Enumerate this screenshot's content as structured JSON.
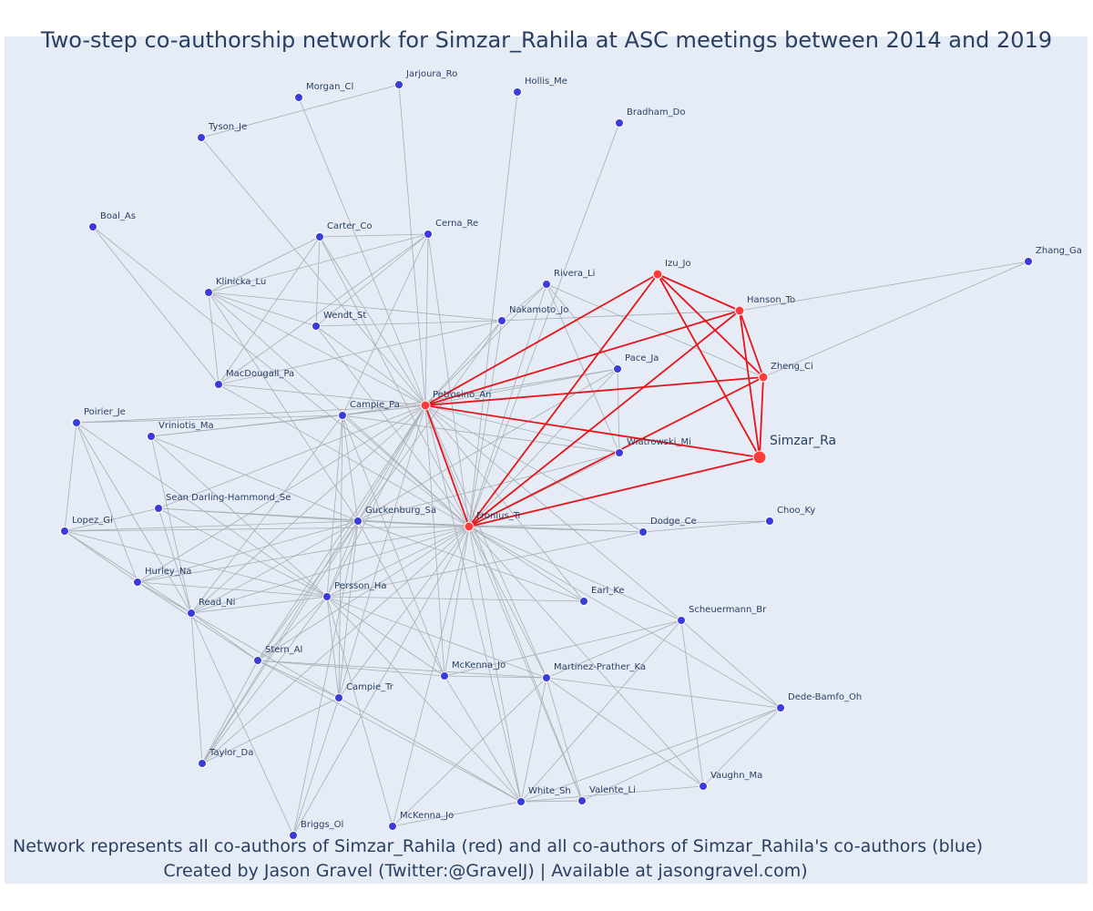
{
  "title": "Two-step co-authorship network for Simzar_Rahila at ASC meetings between 2014 and 2019",
  "caption_line1": "Network represents all co-authors of Simzar_Rahila (red) and all co-authors of Simzar_Rahila's co-authors (blue)",
  "caption_line2": "Created by Jason Gravel (Twitter:@GravelJ) | Available at jasongravel.com)",
  "colors": {
    "background": "#e5ecf6",
    "red_node": "#ff3b3b",
    "blue_node": "#3b3bdb",
    "red_edge": "#e8141a",
    "grey_edge": "#a9adb5",
    "text": "#2a3f5f"
  },
  "nodes": [
    {
      "id": "Simzar_Ra",
      "label": "Simzar_Ra",
      "group": "focal"
    },
    {
      "id": "Petrosino_An",
      "label": "Petrosino_An",
      "group": "red"
    },
    {
      "id": "Fronius_Tr",
      "label": "Fronius_Tr",
      "group": "red"
    },
    {
      "id": "Izu_Jo",
      "label": "Izu_Jo",
      "group": "red"
    },
    {
      "id": "Hanson_To",
      "label": "Hanson_To",
      "group": "red"
    },
    {
      "id": "Zheng_Ci",
      "label": "Zheng_Ci",
      "group": "red"
    },
    {
      "id": "Wiatrowski_Mi",
      "label": "Wiatrowski_Mi",
      "group": "blue"
    },
    {
      "id": "Jarjoura_Ro",
      "label": "Jarjoura_Ro",
      "group": "blue"
    },
    {
      "id": "Morgan_Cl",
      "label": "Morgan_Cl",
      "group": "blue"
    },
    {
      "id": "Hollis_Me",
      "label": "Hollis_Me",
      "group": "blue"
    },
    {
      "id": "Tyson_Je",
      "label": "Tyson_Je",
      "group": "blue"
    },
    {
      "id": "Bradham_Do",
      "label": "Bradham_Do",
      "group": "blue"
    },
    {
      "id": "Boal_As",
      "label": "Boal_As",
      "group": "blue"
    },
    {
      "id": "Carter_Co",
      "label": "Carter_Co",
      "group": "blue"
    },
    {
      "id": "Cerna_Re",
      "label": "Cerna_Re",
      "group": "blue"
    },
    {
      "id": "Zhang_Ga",
      "label": "Zhang_Ga",
      "group": "blue"
    },
    {
      "id": "Rivera_Li",
      "label": "Rivera_Li",
      "group": "blue"
    },
    {
      "id": "Klinicka_Lu",
      "label": "Klinicka_Lu",
      "group": "blue"
    },
    {
      "id": "Nakamoto_Jo",
      "label": "Nakamoto_Jo",
      "group": "blue"
    },
    {
      "id": "Wendt_St",
      "label": "Wendt_St",
      "group": "blue"
    },
    {
      "id": "Pace_Ja",
      "label": "Pace_Ja",
      "group": "blue"
    },
    {
      "id": "MacDougall_Pa",
      "label": "MacDougall_Pa",
      "group": "blue"
    },
    {
      "id": "Campie_Pa",
      "label": "Campie_Pa",
      "group": "blue"
    },
    {
      "id": "Poirier_Je",
      "label": "Poirier_Je",
      "group": "blue"
    },
    {
      "id": "Vriniotis_Ma",
      "label": "Vriniotis_Ma",
      "group": "blue"
    },
    {
      "id": "Sean_Darling",
      "label": "Sean Darling-Hammond_Se",
      "group": "blue"
    },
    {
      "id": "Guckenburg_Sa",
      "label": "Guckenburg_Sa",
      "group": "blue"
    },
    {
      "id": "Lopez_Gi",
      "label": "Lopez_Gi",
      "group": "blue"
    },
    {
      "id": "Choo_Ky",
      "label": "Choo_Ky",
      "group": "blue"
    },
    {
      "id": "Dodge_Ce",
      "label": "Dodge_Ce",
      "group": "blue"
    },
    {
      "id": "Hurley_Na",
      "label": "Hurley_Na",
      "group": "blue"
    },
    {
      "id": "Persson_Ha",
      "label": "Persson_Ha",
      "group": "blue"
    },
    {
      "id": "Earl_Ke",
      "label": "Earl_Ke",
      "group": "blue"
    },
    {
      "id": "Read_Ni",
      "label": "Read_Ni",
      "group": "blue"
    },
    {
      "id": "Scheuermann_Br",
      "label": "Scheuermann_Br",
      "group": "blue"
    },
    {
      "id": "Stern_Al",
      "label": "Stern_Al",
      "group": "blue"
    },
    {
      "id": "McKenna_Jo_a",
      "label": "McKenna_Jo",
      "group": "blue"
    },
    {
      "id": "Martinez_Prather_Ka",
      "label": "Martinez-Prather_Ka",
      "group": "blue"
    },
    {
      "id": "Campie_Tr",
      "label": "Campie_Tr",
      "group": "blue"
    },
    {
      "id": "Dede_Bamfo_Oh",
      "label": "Dede-Bamfo_Oh",
      "group": "blue"
    },
    {
      "id": "Taylor_Da",
      "label": "Taylor_Da",
      "group": "blue"
    },
    {
      "id": "Vaughn_Ma",
      "label": "Vaughn_Ma",
      "group": "blue"
    },
    {
      "id": "White_Sh",
      "label": "White_Sh",
      "group": "blue"
    },
    {
      "id": "Valente_Li",
      "label": "Valente_Li",
      "group": "blue"
    },
    {
      "id": "McKenna_Jo_b",
      "label": "McKenna_Jo",
      "group": "blue"
    },
    {
      "id": "Briggs_Ol",
      "label": "Briggs_Ol",
      "group": "blue"
    }
  ],
  "red_edges": [
    [
      "Simzar_Ra",
      "Petrosino_An"
    ],
    [
      "Simzar_Ra",
      "Fronius_Tr"
    ],
    [
      "Simzar_Ra",
      "Izu_Jo"
    ],
    [
      "Simzar_Ra",
      "Hanson_To"
    ],
    [
      "Simzar_Ra",
      "Zheng_Ci"
    ],
    [
      "Petrosino_An",
      "Fronius_Tr"
    ],
    [
      "Petrosino_An",
      "Izu_Jo"
    ],
    [
      "Petrosino_An",
      "Hanson_To"
    ],
    [
      "Petrosino_An",
      "Zheng_Ci"
    ],
    [
      "Fronius_Tr",
      "Izu_Jo"
    ],
    [
      "Fronius_Tr",
      "Hanson_To"
    ],
    [
      "Fronius_Tr",
      "Zheng_Ci"
    ],
    [
      "Izu_Jo",
      "Hanson_To"
    ],
    [
      "Izu_Jo",
      "Zheng_Ci"
    ],
    [
      "Hanson_To",
      "Zheng_Ci"
    ]
  ],
  "grey_edges": [
    [
      "Hanson_To",
      "Zhang_Ga"
    ],
    [
      "Zheng_Ci",
      "Zhang_Ga"
    ],
    [
      "Hanson_To",
      "Nakamoto_Jo"
    ],
    [
      "Zheng_Ci",
      "Rivera_Li"
    ],
    [
      "Petrosino_An",
      "Jarjoura_Ro"
    ],
    [
      "Petrosino_An",
      "Morgan_Cl"
    ],
    [
      "Petrosino_An",
      "Tyson_Je"
    ],
    [
      "Petrosino_An",
      "Carter_Co"
    ],
    [
      "Petrosino_An",
      "Cerna_Re"
    ],
    [
      "Petrosino_An",
      "Klinicka_Lu"
    ],
    [
      "Petrosino_An",
      "Wendt_St"
    ],
    [
      "Petrosino_An",
      "MacDougall_Pa"
    ],
    [
      "Petrosino_An",
      "Campie_Pa"
    ],
    [
      "Petrosino_An",
      "Nakamoto_Jo"
    ],
    [
      "Petrosino_An",
      "Rivera_Li"
    ],
    [
      "Petrosino_An",
      "Pace_Ja"
    ],
    [
      "Petrosino_An",
      "Wiatrowski_Mi"
    ],
    [
      "Petrosino_An",
      "Guckenburg_Sa"
    ],
    [
      "Petrosino_An",
      "Persson_Ha"
    ],
    [
      "Petrosino_An",
      "Sean_Darling"
    ],
    [
      "Petrosino_An",
      "Vriniotis_Ma"
    ],
    [
      "Petrosino_An",
      "Poirier_Je"
    ],
    [
      "Petrosino_An",
      "Read_Ni"
    ],
    [
      "Petrosino_An",
      "Hurley_Na"
    ],
    [
      "Petrosino_An",
      "Stern_Al"
    ],
    [
      "Petrosino_An",
      "Campie_Tr"
    ],
    [
      "Petrosino_An",
      "McKenna_Jo_a"
    ],
    [
      "Petrosino_An",
      "Martinez_Prather_Ka"
    ],
    [
      "Petrosino_An",
      "Earl_Ke"
    ],
    [
      "Petrosino_An",
      "Dodge_Ce"
    ],
    [
      "Petrosino_An",
      "Scheuermann_Br"
    ],
    [
      "Petrosino_An",
      "Taylor_Da"
    ],
    [
      "Petrosino_An",
      "White_Sh"
    ],
    [
      "Petrosino_An",
      "Valente_Li"
    ],
    [
      "Fronius_Tr",
      "Hollis_Me"
    ],
    [
      "Fronius_Tr",
      "Carter_Co"
    ],
    [
      "Fronius_Tr",
      "Cerna_Re"
    ],
    [
      "Fronius_Tr",
      "Klinicka_Lu"
    ],
    [
      "Fronius_Tr",
      "Wendt_St"
    ],
    [
      "Fronius_Tr",
      "MacDougall_Pa"
    ],
    [
      "Fronius_Tr",
      "Campie_Pa"
    ],
    [
      "Fronius_Tr",
      "Nakamoto_Jo"
    ],
    [
      "Fronius_Tr",
      "Rivera_Li"
    ],
    [
      "Fronius_Tr",
      "Pace_Ja"
    ],
    [
      "Fronius_Tr",
      "Wiatrowski_Mi"
    ],
    [
      "Fronius_Tr",
      "Guckenburg_Sa"
    ],
    [
      "Fronius_Tr",
      "Persson_Ha"
    ],
    [
      "Fronius_Tr",
      "Sean_Darling"
    ],
    [
      "Fronius_Tr",
      "Lopez_Gi"
    ],
    [
      "Fronius_Tr",
      "Hurley_Na"
    ],
    [
      "Fronius_Tr",
      "Read_Ni"
    ],
    [
      "Fronius_Tr",
      "Stern_Al"
    ],
    [
      "Fronius_Tr",
      "Campie_Tr"
    ],
    [
      "Fronius_Tr",
      "McKenna_Jo_a"
    ],
    [
      "Fronius_Tr",
      "Martinez_Prather_Ka"
    ],
    [
      "Fronius_Tr",
      "Earl_Ke"
    ],
    [
      "Fronius_Tr",
      "Dodge_Ce"
    ],
    [
      "Fronius_Tr",
      "Choo_Ky"
    ],
    [
      "Fronius_Tr",
      "Scheuermann_Br"
    ],
    [
      "Fronius_Tr",
      "Dede_Bamfo_Oh"
    ],
    [
      "Fronius_Tr",
      "Vaughn_Ma"
    ],
    [
      "Fronius_Tr",
      "White_Sh"
    ],
    [
      "Fronius_Tr",
      "Valente_Li"
    ],
    [
      "Fronius_Tr",
      "McKenna_Jo_b"
    ],
    [
      "Fronius_Tr",
      "Briggs_Ol"
    ],
    [
      "Fronius_Tr",
      "Taylor_Da"
    ],
    [
      "Tyson_Je",
      "Jarjoura_Ro"
    ],
    [
      "Boal_As",
      "MacDougall_Pa"
    ],
    [
      "Boal_As",
      "Fronius_Tr"
    ],
    [
      "Carter_Co",
      "Cerna_Re"
    ],
    [
      "Carter_Co",
      "Klinicka_Lu"
    ],
    [
      "Carter_Co",
      "Wendt_St"
    ],
    [
      "Carter_Co",
      "MacDougall_Pa"
    ],
    [
      "Cerna_Re",
      "Klinicka_Lu"
    ],
    [
      "Cerna_Re",
      "Wendt_St"
    ],
    [
      "Cerna_Re",
      "MacDougall_Pa"
    ],
    [
      "Cerna_Re",
      "Campie_Pa"
    ],
    [
      "Klinicka_Lu",
      "Wendt_St"
    ],
    [
      "Klinicka_Lu",
      "MacDougall_Pa"
    ],
    [
      "Klinicka_Lu",
      "Nakamoto_Jo"
    ],
    [
      "Klinicka_Lu",
      "Guckenburg_Sa"
    ],
    [
      "Nakamoto_Jo",
      "Rivera_Li"
    ],
    [
      "Nakamoto_Jo",
      "Guckenburg_Sa"
    ],
    [
      "Nakamoto_Jo",
      "Wendt_St"
    ],
    [
      "Nakamoto_Jo",
      "MacDougall_Pa"
    ],
    [
      "Rivera_Li",
      "Pace_Ja"
    ],
    [
      "Rivera_Li",
      "Wiatrowski_Mi"
    ],
    [
      "Pace_Ja",
      "Wiatrowski_Mi"
    ],
    [
      "Pace_Ja",
      "Guckenburg_Sa"
    ],
    [
      "Pace_Ja",
      "Campie_Pa"
    ],
    [
      "Wiatrowski_Mi",
      "Guckenburg_Sa"
    ],
    [
      "Wiatrowski_Mi",
      "Campie_Pa"
    ],
    [
      "Campie_Pa",
      "Poirier_Je"
    ],
    [
      "Campie_Pa",
      "Vriniotis_Ma"
    ],
    [
      "Campie_Pa",
      "Guckenburg_Sa"
    ],
    [
      "Campie_Pa",
      "Persson_Ha"
    ],
    [
      "Campie_Pa",
      "Campie_Tr"
    ],
    [
      "Campie_Pa",
      "McKenna_Jo_a"
    ],
    [
      "Campie_Pa",
      "Read_Ni"
    ],
    [
      "Poirier_Je",
      "Lopez_Gi"
    ],
    [
      "Poirier_Je",
      "Hurley_Na"
    ],
    [
      "Poirier_Je",
      "Read_Ni"
    ],
    [
      "Poirier_Je",
      "Persson_Ha"
    ],
    [
      "Vriniotis_Ma",
      "Persson_Ha"
    ],
    [
      "Vriniotis_Ma",
      "Guckenburg_Sa"
    ],
    [
      "Vriniotis_Ma",
      "Read_Ni"
    ],
    [
      "Sean_Darling",
      "Guckenburg_Sa"
    ],
    [
      "Sean_Darling",
      "Persson_Ha"
    ],
    [
      "Sean_Darling",
      "Lopez_Gi"
    ],
    [
      "Sean_Darling",
      "Read_Ni"
    ],
    [
      "Lopez_Gi",
      "Guckenburg_Sa"
    ],
    [
      "Lopez_Gi",
      "Hurley_Na"
    ],
    [
      "Lopez_Gi",
      "Read_Ni"
    ],
    [
      "Lopez_Gi",
      "Persson_Ha"
    ],
    [
      "Guckenburg_Sa",
      "Dodge_Ce"
    ],
    [
      "Guckenburg_Sa",
      "Persson_Ha"
    ],
    [
      "Guckenburg_Sa",
      "Hurley_Na"
    ],
    [
      "Guckenburg_Sa",
      "Read_Ni"
    ],
    [
      "Guckenburg_Sa",
      "Stern_Al"
    ],
    [
      "Guckenburg_Sa",
      "Campie_Tr"
    ],
    [
      "Guckenburg_Sa",
      "Taylor_Da"
    ],
    [
      "Guckenburg_Sa",
      "Briggs_Ol"
    ],
    [
      "Guckenburg_Sa",
      "McKenna_Jo_a"
    ],
    [
      "Guckenburg_Sa",
      "Earl_Ke"
    ],
    [
      "Dodge_Ce",
      "Choo_Ky"
    ],
    [
      "Dodge_Ce",
      "Persson_Ha"
    ],
    [
      "Hurley_Na",
      "Persson_Ha"
    ],
    [
      "Hurley_Na",
      "Read_Ni"
    ],
    [
      "Hurley_Na",
      "Stern_Al"
    ],
    [
      "Persson_Ha",
      "Read_Ni"
    ],
    [
      "Persson_Ha",
      "Stern_Al"
    ],
    [
      "Persson_Ha",
      "Campie_Tr"
    ],
    [
      "Persson_Ha",
      "McKenna_Jo_a"
    ],
    [
      "Persson_Ha",
      "Martinez_Prather_Ka"
    ],
    [
      "Persson_Ha",
      "White_Sh"
    ],
    [
      "Persson_Ha",
      "Earl_Ke"
    ],
    [
      "Persson_Ha",
      "Taylor_Da"
    ],
    [
      "Persson_Ha",
      "McKenna_Jo_b"
    ],
    [
      "Read_Ni",
      "Stern_Al"
    ],
    [
      "Read_Ni",
      "Taylor_Da"
    ],
    [
      "Read_Ni",
      "Briggs_Ol"
    ],
    [
      "Read_Ni",
      "Campie_Tr"
    ],
    [
      "Stern_Al",
      "McKenna_Jo_a"
    ],
    [
      "Stern_Al",
      "Martinez_Prather_Ka"
    ],
    [
      "Stern_Al",
      "Campie_Tr"
    ],
    [
      "Stern_Al",
      "White_Sh"
    ],
    [
      "Scheuermann_Br",
      "McKenna_Jo_a"
    ],
    [
      "Scheuermann_Br",
      "Martinez_Prather_Ka"
    ],
    [
      "Scheuermann_Br",
      "Dede_Bamfo_Oh"
    ],
    [
      "Scheuermann_Br",
      "Vaughn_Ma"
    ],
    [
      "Scheuermann_Br",
      "White_Sh"
    ],
    [
      "Martinez_Prather_Ka",
      "McKenna_Jo_a"
    ],
    [
      "Martinez_Prather_Ka",
      "Dede_Bamfo_Oh"
    ],
    [
      "Martinez_Prather_Ka",
      "Vaughn_Ma"
    ],
    [
      "Martinez_Prather_Ka",
      "White_Sh"
    ],
    [
      "Martinez_Prather_Ka",
      "Valente_Li"
    ],
    [
      "Martinez_Prather_Ka",
      "McKenna_Jo_b"
    ],
    [
      "Dede_Bamfo_Oh",
      "Vaughn_Ma"
    ],
    [
      "Dede_Bamfo_Oh",
      "White_Sh"
    ],
    [
      "Dede_Bamfo_Oh",
      "Valente_Li"
    ],
    [
      "Campie_Tr",
      "Taylor_Da"
    ],
    [
      "Campie_Tr",
      "Briggs_Ol"
    ],
    [
      "Campie_Tr",
      "White_Sh"
    ],
    [
      "White_Sh",
      "Valente_Li"
    ],
    [
      "White_Sh",
      "McKenna_Jo_b"
    ],
    [
      "Vaughn_Ma",
      "White_Sh"
    ],
    [
      "McKenna_Jo_a",
      "White_Sh"
    ],
    [
      "Stern_Al",
      "Taylor_Da"
    ]
  ]
}
